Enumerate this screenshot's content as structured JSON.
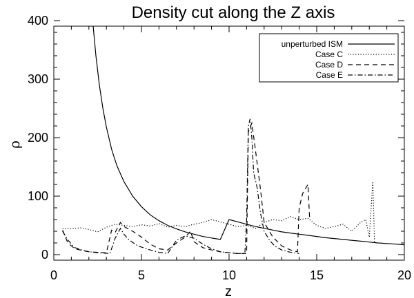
{
  "chart_data": {
    "type": "line",
    "title": "Density cut along the Z axis",
    "xlabel": "z",
    "ylabel": "ρ",
    "xlim": [
      0,
      20
    ],
    "ylim": [
      0,
      400
    ],
    "x_ticks": [
      0,
      5,
      10,
      15,
      20
    ],
    "y_ticks": [
      0,
      100,
      200,
      300,
      400
    ],
    "grid": false,
    "legend_position": "top-right",
    "series": [
      {
        "name": "unperturbed ISM",
        "style": "solid",
        "color": "#000000",
        "x": [
          2.2,
          2.4,
          2.6,
          2.8,
          3.0,
          3.3,
          3.6,
          4.0,
          4.5,
          5.0,
          5.5,
          6.0,
          6.5,
          7.0,
          7.5,
          8.0,
          8.5,
          9.0,
          9.5,
          10.0,
          10.5,
          11.0,
          11.5,
          12.0,
          12.5,
          13.0,
          13.5,
          14.0,
          14.5,
          15.0,
          15.5,
          16.0,
          16.5,
          17.0,
          17.5,
          18.0,
          18.5,
          19.0,
          19.5,
          20.0
        ],
        "y": [
          405,
          340,
          290,
          250,
          218,
          180,
          152,
          125,
          100,
          82,
          68,
          58,
          50,
          44,
          39,
          35,
          31,
          28.5,
          26,
          60,
          56,
          52,
          48,
          45,
          42,
          39,
          37,
          35,
          33,
          31,
          29,
          27.5,
          26,
          24.5,
          23,
          21.5,
          20,
          19,
          18,
          17
        ]
      },
      {
        "name": "Case C",
        "style": "dotted",
        "color": "#000000",
        "x": [
          0.5,
          1.0,
          1.5,
          2.0,
          2.5,
          3.0,
          3.5,
          4.0,
          4.5,
          5.0,
          5.5,
          6.0,
          6.5,
          7.0,
          7.5,
          8.0,
          8.5,
          9.0,
          9.5,
          10.0,
          10.5,
          11.0,
          11.5,
          12.0,
          12.5,
          13.0,
          13.5,
          14.0,
          14.5,
          15.0,
          15.5,
          16.0,
          16.5,
          17.0,
          17.5,
          17.8,
          18.0,
          18.2,
          18.3
        ],
        "y": [
          45,
          44,
          46,
          43,
          39,
          47,
          52,
          50,
          48,
          51,
          49,
          53,
          47,
          50,
          48,
          52,
          55,
          60,
          56,
          52,
          48,
          50,
          45,
          55,
          60,
          58,
          65,
          60,
          62,
          50,
          45,
          48,
          52,
          40,
          55,
          60,
          30,
          125,
          20
        ]
      },
      {
        "name": "Case D",
        "style": "dashed",
        "color": "#000000",
        "x": [
          0.5,
          0.8,
          1.2,
          2.0,
          3.0,
          3.3,
          3.5,
          3.8,
          4.0,
          4.5,
          5.0,
          5.5,
          6.0,
          6.5,
          7.0,
          7.5,
          7.8,
          8.0,
          8.5,
          9.0,
          9.5,
          10.0,
          10.5,
          11.0,
          11.1,
          11.3,
          11.5,
          11.8,
          12.0,
          12.5,
          13.0,
          13.5,
          13.9,
          14.0,
          14.2,
          14.5,
          14.6
        ],
        "y": [
          42,
          20,
          10,
          5,
          3,
          42,
          38,
          55,
          48,
          40,
          30,
          18,
          10,
          8,
          20,
          30,
          40,
          22,
          12,
          8,
          5,
          3,
          2,
          2,
          210,
          225,
          180,
          110,
          55,
          30,
          15,
          8,
          5,
          80,
          105,
          120,
          60
        ]
      },
      {
        "name": "Case E",
        "style": "dashdot",
        "color": "#000000",
        "x": [
          0.5,
          0.8,
          1.2,
          1.8,
          2.5,
          3.2,
          3.5,
          3.8,
          4.0,
          4.3,
          4.8,
          5.5,
          6.0,
          6.5,
          7.0,
          7.5,
          8.0,
          8.5,
          9.0,
          9.5,
          10.0,
          10.5,
          10.9,
          11.0,
          11.1,
          11.2,
          11.3,
          11.4,
          11.6,
          11.8,
          12.0,
          12.3,
          12.6,
          13.0,
          13.5,
          14.0
        ],
        "y": [
          40,
          25,
          12,
          6,
          3,
          2,
          28,
          45,
          35,
          25,
          15,
          8,
          4,
          2,
          25,
          32,
          28,
          18,
          10,
          5,
          3,
          2,
          2,
          60,
          220,
          232,
          200,
          140,
          115,
          70,
          40,
          25,
          15,
          8,
          4,
          2
        ]
      }
    ]
  }
}
